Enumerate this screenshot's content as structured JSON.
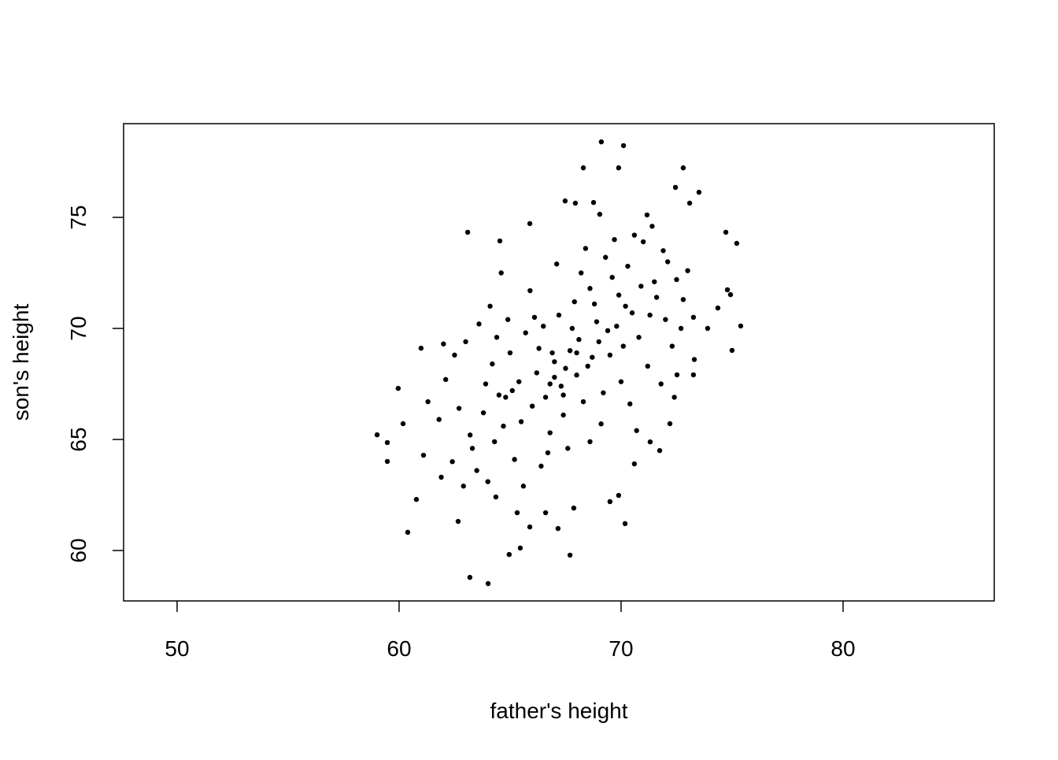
{
  "chart_data": {
    "type": "scatter",
    "x_label": "father's height",
    "y_label": "son's height",
    "xlim": [
      47.59,
      86.81
    ],
    "ylim": [
      57.73,
      79.22
    ],
    "xticks": [
      50,
      60,
      70,
      80
    ],
    "yticks": [
      60,
      65,
      70,
      75
    ],
    "color": "#000000",
    "x": [
      69.11,
      70.11,
      68.3,
      69.89,
      72.8,
      72.45,
      73.51,
      67.48,
      67.94,
      68.76,
      69.04,
      65.89,
      63.09,
      64.54,
      74.72,
      75.21,
      73.09,
      71.17,
      59.01,
      59.47,
      59.47,
      59.96,
      60.18,
      60.39,
      60.78,
      60.99,
      61.1,
      62.66,
      63.19,
      64.01,
      64.96,
      65.46,
      67.7,
      67.16,
      65.89,
      64.36,
      65.32,
      66.6,
      67.87,
      69.5,
      69.89,
      70.18,
      70.6,
      71.74,
      71.31,
      72.2,
      74.93,
      74.79,
      75.0,
      75.39,
      74.36,
      73.9,
      73.26,
      73.26,
      72.52,
      64.2,
      65.1,
      66.3,
      67.0,
      67.5,
      68.1,
      68.9,
      69.5,
      70.2,
      70.8,
      71.5,
      72.0,
      66.0,
      65.5,
      64.8,
      63.9,
      63.2,
      62.7,
      62.1,
      61.8,
      62.4,
      63.5,
      64.3,
      65.2,
      66.8,
      67.4,
      68.3,
      69.2,
      70.0,
      71.2,
      72.3,
      72.8,
      73.0,
      71.9,
      71.0,
      70.3,
      69.6,
      68.6,
      67.9,
      67.2,
      66.5,
      65.7,
      64.9,
      64.1,
      63.6,
      63.0,
      62.5,
      64.6,
      65.9,
      67.1,
      68.4,
      69.3,
      70.6,
      71.6,
      72.5,
      66.2,
      66.9,
      67.7,
      68.5,
      69.0,
      69.8,
      70.5,
      65.4,
      64.5,
      63.8,
      66.6,
      67.3,
      68.0,
      68.7,
      69.4,
      70.1,
      71.3,
      65.0,
      66.1,
      67.8,
      68.8,
      69.9,
      70.9,
      72.1,
      71.8,
      70.4,
      69.1,
      67.6,
      66.4,
      65.6,
      64.0,
      63.3,
      62.9,
      61.9,
      61.3,
      62.0,
      64.4,
      68.2,
      69.7,
      71.4,
      72.7,
      73.3,
      72.4,
      70.7,
      68.6,
      66.7,
      64.7,
      67.0,
      67.4,
      68.0,
      66.8
    ],
    "values": [
      78.4,
      78.23,
      77.23,
      77.23,
      77.23,
      76.35,
      76.13,
      75.74,
      75.64,
      75.67,
      75.14,
      74.72,
      74.33,
      73.94,
      74.33,
      73.83,
      75.64,
      75.11,
      65.21,
      64.86,
      64.01,
      67.3,
      65.71,
      60.82,
      62.3,
      69.11,
      64.29,
      61.31,
      58.79,
      58.51,
      59.82,
      60.11,
      59.79,
      60.99,
      61.06,
      62.41,
      61.7,
      61.7,
      61.91,
      62.2,
      62.48,
      61.21,
      63.9,
      64.5,
      64.89,
      65.71,
      71.52,
      71.74,
      69.01,
      70.11,
      70.92,
      70.0,
      70.5,
      67.91,
      67.91,
      68.4,
      67.2,
      69.1,
      67.8,
      68.2,
      69.5,
      70.3,
      68.8,
      71.0,
      69.6,
      72.1,
      70.4,
      66.5,
      65.8,
      66.9,
      67.5,
      65.2,
      66.4,
      67.7,
      65.9,
      64.0,
      63.6,
      64.9,
      64.1,
      65.3,
      66.1,
      66.7,
      67.1,
      67.6,
      68.3,
      69.2,
      71.3,
      72.6,
      73.5,
      73.9,
      72.8,
      72.3,
      71.8,
      71.2,
      70.6,
      70.1,
      69.8,
      70.4,
      71.0,
      70.2,
      69.4,
      68.8,
      72.5,
      71.7,
      72.9,
      73.6,
      73.2,
      74.2,
      71.4,
      72.2,
      68.0,
      68.9,
      69.0,
      68.3,
      69.4,
      70.1,
      70.7,
      67.6,
      67.0,
      66.2,
      66.9,
      67.4,
      67.9,
      68.7,
      69.9,
      69.2,
      70.6,
      68.9,
      70.5,
      70.0,
      71.1,
      71.5,
      71.9,
      73.0,
      67.5,
      66.6,
      65.7,
      64.6,
      63.8,
      62.9,
      63.1,
      64.6,
      62.9,
      63.3,
      66.7,
      69.3,
      69.6,
      72.5,
      74.0,
      74.6,
      70.0,
      68.6,
      66.9,
      65.4,
      64.9,
      64.4,
      65.6,
      68.5,
      67.0,
      68.9,
      67.5
    ]
  }
}
